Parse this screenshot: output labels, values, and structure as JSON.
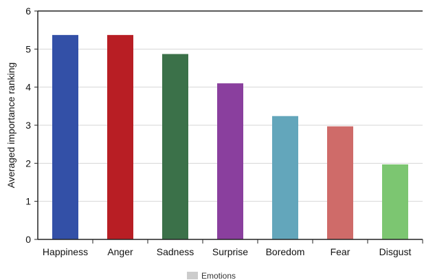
{
  "chart_data": {
    "type": "bar",
    "categories": [
      "Happiness",
      "Anger",
      "Sadness",
      "Surprise",
      "Boredom",
      "Fear",
      "Disgust"
    ],
    "values": [
      5.37,
      5.37,
      4.87,
      4.1,
      3.24,
      2.97,
      1.97
    ],
    "colors": [
      "#3350a7",
      "#b81e24",
      "#3b7149",
      "#8a3f9e",
      "#63a6bb",
      "#cf6b69",
      "#7cc671"
    ],
    "ylabel": "Averaged importance ranking",
    "xlabel": "",
    "ylim": [
      0,
      6
    ],
    "yticks": [
      0,
      1,
      2,
      3,
      4,
      5,
      6
    ],
    "grid": true,
    "legend": {
      "position": "bottom-center",
      "entries": [
        {
          "name": "Emotions",
          "color": "#cccccc"
        }
      ]
    }
  }
}
